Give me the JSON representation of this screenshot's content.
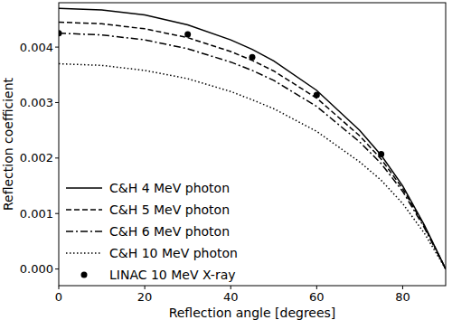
{
  "chart_data": {
    "type": "line",
    "x_label": "Reflection angle [degrees]",
    "y_label": "Reflection coefficient",
    "x": [
      0,
      10,
      20,
      30,
      40,
      45,
      50,
      60,
      70,
      75,
      80,
      85,
      90
    ],
    "series": [
      {
        "name": "C&H 4 MeV photon",
        "color": "#000000",
        "line_style": "solid",
        "values": [
          0.0047,
          0.00467,
          0.00458,
          0.0044,
          0.00413,
          0.00396,
          0.00375,
          0.00322,
          0.0025,
          0.00205,
          0.0015,
          0.0008,
          0.0
        ]
      },
      {
        "name": "C&H 5 MeV photon",
        "color": "#000000",
        "line_style": "dashed",
        "values": [
          0.00445,
          0.00442,
          0.00433,
          0.00417,
          0.00392,
          0.00376,
          0.00357,
          0.00308,
          0.0024,
          0.00198,
          0.00145,
          0.00078,
          0.0
        ]
      },
      {
        "name": "C&H 6 MeV photon",
        "color": "#000000",
        "line_style": "dashdot",
        "values": [
          0.00425,
          0.00422,
          0.00413,
          0.00397,
          0.00373,
          0.00358,
          0.0034,
          0.00293,
          0.00229,
          0.0019,
          0.0014,
          0.00075,
          0.0
        ]
      },
      {
        "name": "C&H 10 MeV photon",
        "color": "#000000",
        "line_style": "dotted",
        "values": [
          0.0037,
          0.00367,
          0.00358,
          0.00343,
          0.0032,
          0.00305,
          0.00289,
          0.00248,
          0.00193,
          0.0016,
          0.00118,
          0.00065,
          0.0
        ]
      },
      {
        "name": "LINAC 10 MeV X-ray",
        "color": "#000000",
        "type": "scatter",
        "marker": "circle",
        "values": [
          0.00425,
          null,
          null,
          0.00423,
          null,
          0.00382,
          null,
          0.00314,
          null,
          0.00207,
          null,
          null,
          null
        ]
      }
    ],
    "xlim": [
      0,
      90
    ],
    "xticks": [
      0,
      20,
      40,
      60,
      80
    ],
    "ylim": [
      -0.0003,
      0.0048
    ],
    "yticks": [
      {
        "value": 0,
        "label": "0.000"
      },
      {
        "value": 0.001,
        "label": "0.001"
      },
      {
        "value": 0.002,
        "label": "0.002"
      },
      {
        "value": 0.003,
        "label": "0.003"
      },
      {
        "value": 0.004,
        "label": "0.004"
      }
    ],
    "legend": "lower left",
    "grid": false
  }
}
